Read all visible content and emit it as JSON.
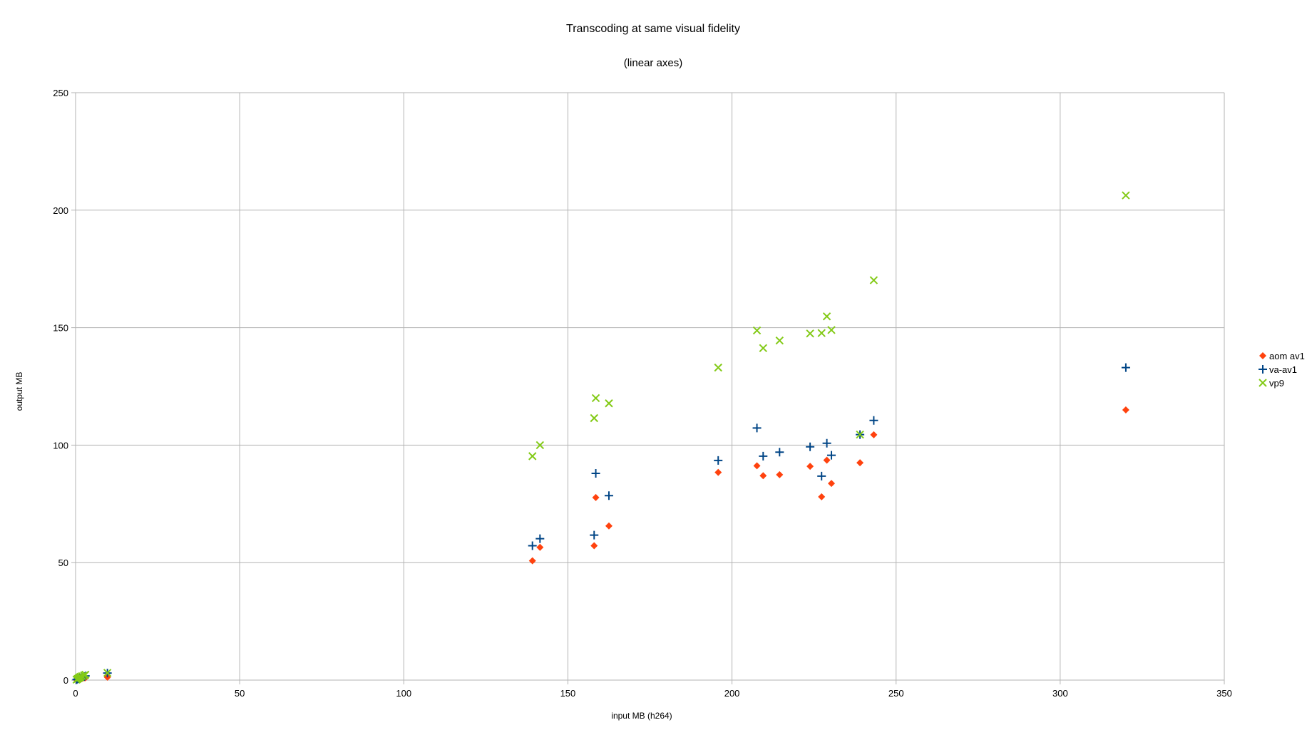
{
  "chart_data": {
    "type": "scatter",
    "title": "Transcoding at same visual fidelity",
    "subtitle": "(linear axes)",
    "xlabel": "input MB (h264)",
    "ylabel": "output MB",
    "xlim": [
      0,
      350
    ],
    "ylim": [
      0,
      250
    ],
    "xticks": [
      0,
      50,
      100,
      150,
      200,
      250,
      300,
      350
    ],
    "yticks": [
      0,
      50,
      100,
      150,
      200,
      250
    ],
    "grid": true,
    "legend_position": "right",
    "series": [
      {
        "name": "aom av1",
        "marker": "diamond",
        "color": "#ff420e",
        "points": [
          [
            0.3,
            0.1
          ],
          [
            0.6,
            0.2
          ],
          [
            0.9,
            0.3
          ],
          [
            1.2,
            0.4
          ],
          [
            1.5,
            0.5
          ],
          [
            2.0,
            0.7
          ],
          [
            2.6,
            0.9
          ],
          [
            3.0,
            1.0
          ],
          [
            9.7,
            1.2
          ],
          [
            139.2,
            50.8
          ],
          [
            141.5,
            56.5
          ],
          [
            158.0,
            57.2
          ],
          [
            158.5,
            77.7
          ],
          [
            162.5,
            65.6
          ],
          [
            195.8,
            88.4
          ],
          [
            207.6,
            91.2
          ],
          [
            209.5,
            87.0
          ],
          [
            214.5,
            87.4
          ],
          [
            223.8,
            91.0
          ],
          [
            227.3,
            78.0
          ],
          [
            228.9,
            93.6
          ],
          [
            230.3,
            83.7
          ],
          [
            239.0,
            92.5
          ],
          [
            243.2,
            104.4
          ],
          [
            320.0,
            115.0
          ]
        ]
      },
      {
        "name": "va-av1",
        "marker": "plus",
        "color": "#004586",
        "points": [
          [
            0.3,
            0.2
          ],
          [
            0.6,
            0.4
          ],
          [
            0.9,
            0.6
          ],
          [
            1.2,
            0.8
          ],
          [
            1.5,
            1.0
          ],
          [
            2.0,
            1.2
          ],
          [
            2.6,
            1.5
          ],
          [
            3.0,
            1.8
          ],
          [
            9.7,
            3.0
          ],
          [
            139.2,
            57.2
          ],
          [
            141.5,
            60.2
          ],
          [
            158.0,
            61.7
          ],
          [
            158.5,
            88.0
          ],
          [
            162.5,
            78.5
          ],
          [
            195.8,
            93.5
          ],
          [
            207.6,
            107.3
          ],
          [
            209.5,
            95.3
          ],
          [
            214.5,
            97.0
          ],
          [
            223.8,
            99.3
          ],
          [
            227.3,
            86.8
          ],
          [
            228.9,
            100.8
          ],
          [
            230.3,
            95.7
          ],
          [
            239.0,
            104.5
          ],
          [
            243.2,
            110.5
          ],
          [
            320.0,
            133.0
          ]
        ]
      },
      {
        "name": "vp9",
        "marker": "x",
        "color": "#83ca17",
        "points": [
          [
            0.3,
            0.2
          ],
          [
            0.6,
            0.5
          ],
          [
            0.9,
            0.8
          ],
          [
            1.2,
            1.1
          ],
          [
            1.5,
            1.4
          ],
          [
            2.0,
            1.7
          ],
          [
            2.6,
            2.0
          ],
          [
            3.0,
            2.3
          ],
          [
            9.7,
            3.1
          ],
          [
            139.2,
            95.3
          ],
          [
            141.5,
            100.0
          ],
          [
            158.0,
            111.5
          ],
          [
            158.5,
            120.0
          ],
          [
            162.5,
            117.8
          ],
          [
            195.8,
            133.0
          ],
          [
            207.6,
            148.8
          ],
          [
            209.5,
            141.3
          ],
          [
            214.5,
            144.5
          ],
          [
            223.8,
            147.5
          ],
          [
            227.3,
            147.7
          ],
          [
            228.9,
            154.8
          ],
          [
            230.3,
            149.0
          ],
          [
            239.0,
            104.5
          ],
          [
            243.2,
            170.2
          ],
          [
            320.0,
            206.3
          ]
        ]
      }
    ]
  }
}
